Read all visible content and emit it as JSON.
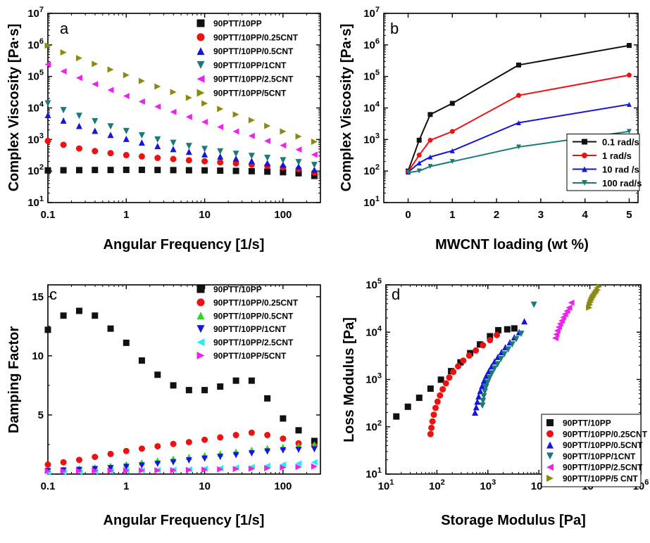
{
  "colors": {
    "black": "#111111",
    "red": "#ee1111",
    "blue": "#1515dd",
    "teal": "#1a7a7a",
    "magenta": "#ee22ee",
    "olive": "#8a8a12",
    "green": "#22dd22",
    "cyan": "#22eeee"
  },
  "chart_data": [
    {
      "panel": "a",
      "type": "scatter",
      "xlabel": "Angular Frequency [1/s]",
      "ylabel": "Complex Viscosity [Pa·s]",
      "xscale": "log",
      "yscale": "log",
      "xlim": [
        0.1,
        300
      ],
      "ylim": [
        10,
        10000000
      ],
      "x_ticks": [
        {
          "v": 0.1,
          "t": "0.1"
        },
        {
          "v": 1,
          "t": "1"
        },
        {
          "v": 10,
          "t": "10"
        },
        {
          "v": 100,
          "t": "100"
        }
      ],
      "y_ticks": [
        {
          "v": 10,
          "b": "10",
          "e": "1"
        },
        {
          "v": 100,
          "b": "10",
          "e": "2"
        },
        {
          "v": 1000,
          "b": "10",
          "e": "3"
        },
        {
          "v": 10000,
          "b": "10",
          "e": "4"
        },
        {
          "v": 100000,
          "b": "10",
          "e": "5"
        },
        {
          "v": 1000000,
          "b": "10",
          "e": "6"
        },
        {
          "v": 10000000,
          "b": "10",
          "e": "7"
        }
      ],
      "legend_position": "top-right",
      "x": [
        0.1,
        0.158,
        0.251,
        0.398,
        0.631,
        1,
        1.58,
        2.51,
        3.98,
        6.31,
        10,
        15.8,
        25.1,
        39.8,
        63.1,
        100,
        158,
        251
      ],
      "series": [
        {
          "name": "90PTT/10PP",
          "marker": "square",
          "color": "black",
          "values": [
            105,
            106,
            107,
            108,
            108,
            109,
            109,
            108,
            107,
            106,
            105,
            103,
            101,
            99,
            96,
            92,
            85,
            70
          ]
        },
        {
          "name": "90PTT/10PP/0.25CNT",
          "marker": "circle",
          "color": "red",
          "values": [
            900,
            680,
            520,
            430,
            370,
            320,
            290,
            260,
            240,
            220,
            205,
            190,
            175,
            160,
            145,
            130,
            115,
            90
          ]
        },
        {
          "name": "90PTT/10PP/0.5CNT",
          "marker": "triangle-up",
          "color": "blue",
          "values": [
            6000,
            4000,
            2700,
            1900,
            1400,
            1050,
            800,
            620,
            500,
            410,
            340,
            290,
            250,
            210,
            180,
            160,
            140,
            110
          ]
        },
        {
          "name": "90PTT/10PP/1CNT",
          "marker": "triangle-down",
          "color": "teal",
          "values": [
            14000,
            8500,
            5600,
            3800,
            2600,
            1850,
            1350,
            1000,
            780,
            620,
            500,
            420,
            350,
            300,
            260,
            220,
            190,
            155
          ]
        },
        {
          "name": "90PTT/10PP/2.5CNT",
          "marker": "triangle-left",
          "color": "magenta",
          "values": [
            240000,
            145000,
            90000,
            57000,
            37000,
            24000,
            16000,
            11000,
            7500,
            5200,
            3600,
            2500,
            1800,
            1300,
            900,
            650,
            480,
            330
          ]
        },
        {
          "name": "90PTT/10PP/5CNT",
          "marker": "triangle-right",
          "color": "olive",
          "values": [
            950000,
            580000,
            380000,
            250000,
            165000,
            110000,
            72000,
            48000,
            32000,
            21000,
            14000,
            9300,
            6200,
            4100,
            2700,
            1800,
            1250,
            850
          ]
        }
      ]
    },
    {
      "panel": "b",
      "type": "line",
      "xlabel": "MWCNT loading (wt %)",
      "ylabel": "Complex Viscosity [Pa·s]",
      "xscale": "linear",
      "yscale": "log",
      "xlim": [
        -0.55,
        5.2
      ],
      "ylim": [
        10,
        10000000
      ],
      "x_ticks": [
        {
          "v": 0,
          "t": "0"
        },
        {
          "v": 1,
          "t": "1"
        },
        {
          "v": 2,
          "t": "2"
        },
        {
          "v": 3,
          "t": "3"
        },
        {
          "v": 4,
          "t": "4"
        },
        {
          "v": 5,
          "t": "5"
        }
      ],
      "y_ticks": [
        {
          "v": 10,
          "b": "10",
          "e": "1"
        },
        {
          "v": 100,
          "b": "10",
          "e": "2"
        },
        {
          "v": 1000,
          "b": "10",
          "e": "3"
        },
        {
          "v": 10000,
          "b": "10",
          "e": "4"
        },
        {
          "v": 100000,
          "b": "10",
          "e": "5"
        },
        {
          "v": 1000000,
          "b": "10",
          "e": "6"
        },
        {
          "v": 10000000,
          "b": "10",
          "e": "7"
        }
      ],
      "legend_position": "bottom-right",
      "x": [
        0,
        0.25,
        0.5,
        1,
        2.5,
        5
      ],
      "series": [
        {
          "name": "0.1 rad/s",
          "marker": "square",
          "color": "black",
          "values": [
            100,
            950,
            6200,
            14000,
            230000,
            960000
          ]
        },
        {
          "name": "1 rad/s",
          "marker": "circle",
          "color": "red",
          "values": [
            95,
            320,
            950,
            1800,
            25000,
            110000
          ]
        },
        {
          "name": "10 rad /s",
          "marker": "triangle-up",
          "color": "blue",
          "values": [
            92,
            180,
            280,
            440,
            3400,
            13000
          ]
        },
        {
          "name": "100 rad/s",
          "marker": "triangle-down",
          "color": "teal",
          "values": [
            90,
            100,
            140,
            200,
            580,
            1800
          ]
        }
      ]
    },
    {
      "panel": "c",
      "type": "scatter",
      "xlabel": "Angular Frequency [1/s]",
      "ylabel": "Damping Factor",
      "xscale": "log",
      "yscale": "linear",
      "xlim": [
        0.1,
        300
      ],
      "ylim": [
        0,
        16
      ],
      "x_ticks": [
        {
          "v": 0.1,
          "t": "0.1"
        },
        {
          "v": 1,
          "t": "1"
        },
        {
          "v": 10,
          "t": "10"
        },
        {
          "v": 100,
          "t": "100"
        }
      ],
      "y_ticks": [
        {
          "v": 5,
          "t": "5"
        },
        {
          "v": 10,
          "t": "10"
        },
        {
          "v": 15,
          "t": "15"
        }
      ],
      "legend_position": "top-right",
      "x": [
        0.1,
        0.158,
        0.251,
        0.398,
        0.631,
        1,
        1.58,
        2.51,
        3.98,
        6.31,
        10,
        15.8,
        25.1,
        39.8,
        63.1,
        100,
        158,
        251
      ],
      "series": [
        {
          "name": "90PTT/10PP",
          "marker": "square",
          "color": "black",
          "values": [
            12.2,
            13.4,
            13.8,
            13.4,
            12.3,
            11.1,
            9.6,
            8.4,
            7.5,
            7.1,
            7.1,
            7.4,
            7.9,
            7.9,
            6.4,
            4.7,
            3.7,
            2.8
          ]
        },
        {
          "name": "90PTT/10PP/0.25CNT",
          "marker": "circle",
          "color": "red",
          "values": [
            0.8,
            1.0,
            1.2,
            1.45,
            1.7,
            1.95,
            2.15,
            2.35,
            2.55,
            2.7,
            2.9,
            3.1,
            3.3,
            3.5,
            3.3,
            3.0,
            2.6,
            2.4
          ]
        },
        {
          "name": "90PTT/10PP/0.5CNT",
          "marker": "triangle-up",
          "color": "green",
          "values": [
            0.35,
            0.4,
            0.48,
            0.58,
            0.7,
            0.85,
            1.0,
            1.15,
            1.3,
            1.45,
            1.6,
            1.75,
            1.9,
            2.05,
            2.2,
            2.3,
            2.4,
            2.5
          ]
        },
        {
          "name": "90PTT/10PP/1CNT",
          "marker": "triangle-down",
          "color": "blue",
          "values": [
            0.25,
            0.3,
            0.35,
            0.42,
            0.5,
            0.6,
            0.72,
            0.86,
            1.0,
            1.15,
            1.3,
            1.45,
            1.6,
            1.75,
            1.9,
            2.0,
            2.05,
            2.1
          ]
        },
        {
          "name": "90PTT/10PP/2.5CNT",
          "marker": "triangle-left",
          "color": "cyan",
          "values": [
            0.15,
            0.17,
            0.2,
            0.22,
            0.25,
            0.28,
            0.31,
            0.34,
            0.37,
            0.4,
            0.45,
            0.5,
            0.55,
            0.6,
            0.7,
            0.8,
            0.9,
            1.0
          ]
        },
        {
          "name": "90PTT/10PP/5CNT",
          "marker": "triangle-right",
          "color": "magenta",
          "values": [
            0.25,
            0.26,
            0.27,
            0.28,
            0.29,
            0.3,
            0.31,
            0.32,
            0.33,
            0.35,
            0.37,
            0.4,
            0.43,
            0.46,
            0.5,
            0.55,
            0.6,
            0.65
          ]
        }
      ]
    },
    {
      "panel": "d",
      "type": "scatter",
      "xlabel": "Storage Modulus [Pa]",
      "ylabel": "Loss Modulus [Pa]",
      "xscale": "log",
      "yscale": "log",
      "xlim": [
        10,
        1000000
      ],
      "ylim": [
        10,
        100000
      ],
      "x_ticks": [
        {
          "v": 10,
          "b": "10",
          "e": "1"
        },
        {
          "v": 100,
          "b": "10",
          "e": "2"
        },
        {
          "v": 1000,
          "b": "10",
          "e": "3"
        },
        {
          "v": 10000,
          "b": "10",
          "e": "4"
        },
        {
          "v": 100000,
          "b": "10",
          "e": "5"
        },
        {
          "v": 1000000,
          "b": "10",
          "e": "6"
        }
      ],
      "y_ticks": [
        {
          "v": 10,
          "b": "10",
          "e": "1"
        },
        {
          "v": 100,
          "b": "10",
          "e": "2"
        },
        {
          "v": 1000,
          "b": "10",
          "e": "3"
        },
        {
          "v": 10000,
          "b": "10",
          "e": "4"
        },
        {
          "v": 100000,
          "b": "10",
          "e": "5"
        }
      ],
      "legend_position": "bottom-right",
      "series": [
        {
          "name": "90PTT/10PP",
          "marker": "square",
          "color": "black",
          "x": [
            16,
            27,
            45,
            75,
            120,
            190,
            290,
            450,
            700,
            1100,
            1600,
            2400,
            3300
          ],
          "y": [
            165,
            265,
            410,
            640,
            990,
            1500,
            2300,
            3600,
            5500,
            8200,
            11000,
            11500,
            12000
          ]
        },
        {
          "name": "90PTT/10PP/0.25CNT",
          "marker": "circle",
          "color": "red",
          "x": [
            75,
            78,
            82,
            87,
            94,
            103,
            115,
            130,
            150,
            175,
            210,
            260,
            330,
            430,
            580,
            800,
            1100,
            1500
          ],
          "y": [
            70,
            95,
            130,
            180,
            250,
            340,
            460,
            620,
            830,
            1100,
            1450,
            1900,
            2500,
            3200,
            4100,
            5300,
            6800,
            8700
          ]
        },
        {
          "name": "90PTT/10PP/0.5CNT",
          "marker": "triangle-up",
          "color": "blue",
          "x": [
            560,
            590,
            620,
            660,
            710,
            770,
            840,
            930,
            1040,
            1180,
            1350,
            1570,
            1850,
            2200,
            2700,
            3300,
            4100,
            5200
          ],
          "y": [
            200,
            260,
            340,
            440,
            570,
            730,
            940,
            1200,
            1500,
            1900,
            2400,
            3000,
            3800,
            4800,
            6100,
            7800,
            10000,
            17000
          ]
        },
        {
          "name": "90PTT/10PP/1CNT",
          "marker": "triangle-down",
          "color": "teal",
          "x": [
            780,
            800,
            830,
            870,
            920,
            990,
            1080,
            1200,
            1350,
            1550,
            1800,
            2100,
            2500,
            3000,
            3600,
            4500,
            8000
          ],
          "y": [
            280,
            350,
            440,
            550,
            690,
            860,
            1080,
            1350,
            1700,
            2100,
            2700,
            3400,
            4300,
            5500,
            7100,
            9200,
            38000
          ]
        },
        {
          "name": "90PTT/10PP/2.5CNT",
          "marker": "triangle-left",
          "color": "magenta",
          "x": [
            21000,
            22000,
            23000,
            24500,
            26000,
            28000,
            30000,
            32500,
            35500,
            39000,
            43000
          ],
          "y": [
            7500,
            9000,
            10800,
            12800,
            15000,
            17500,
            20500,
            24000,
            28000,
            33000,
            42000
          ]
        },
        {
          "name": "90PTT/10PP/5 CNT",
          "marker": "triangle-right",
          "color": "olive",
          "x": [
            97000,
            100000,
            104000,
            108000,
            113000,
            119000,
            126000,
            134000,
            143000,
            152000
          ],
          "y": [
            33000,
            38000,
            43000,
            48000,
            53000,
            58000,
            64000,
            70000,
            78000,
            92000
          ]
        }
      ]
    }
  ]
}
